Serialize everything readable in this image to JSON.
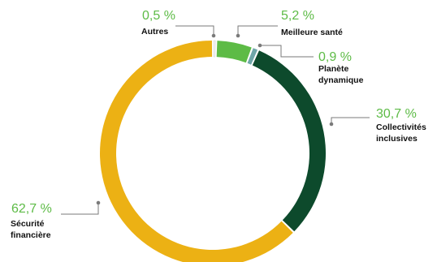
{
  "chart_data": {
    "type": "pie",
    "style": "donut",
    "title": "",
    "slices": [
      {
        "label": "Autres",
        "pct_text": "0,5 %",
        "value": 0.5,
        "color": "#f2f2f2"
      },
      {
        "label": "Meilleure santé",
        "pct_text": "5,2 %",
        "value": 5.2,
        "color": "#5dbb46"
      },
      {
        "label": "Planète dynamique",
        "label_lines": [
          "Planète",
          "dynamique"
        ],
        "pct_text": "0,9 %",
        "value": 0.9,
        "color": "#6ea6a8"
      },
      {
        "label": "Collectivités inclusives",
        "label_lines": [
          "Collectivités",
          "inclusives"
        ],
        "pct_text": "30,7 %",
        "value": 30.7,
        "color": "#0d4a2c"
      },
      {
        "label": "Sécurité financière",
        "label_lines": [
          "Sécurité",
          "financière"
        ],
        "pct_text": "62,7 %",
        "value": 62.7,
        "color": "#ecb114"
      }
    ],
    "label_color": "#5dbb46"
  }
}
